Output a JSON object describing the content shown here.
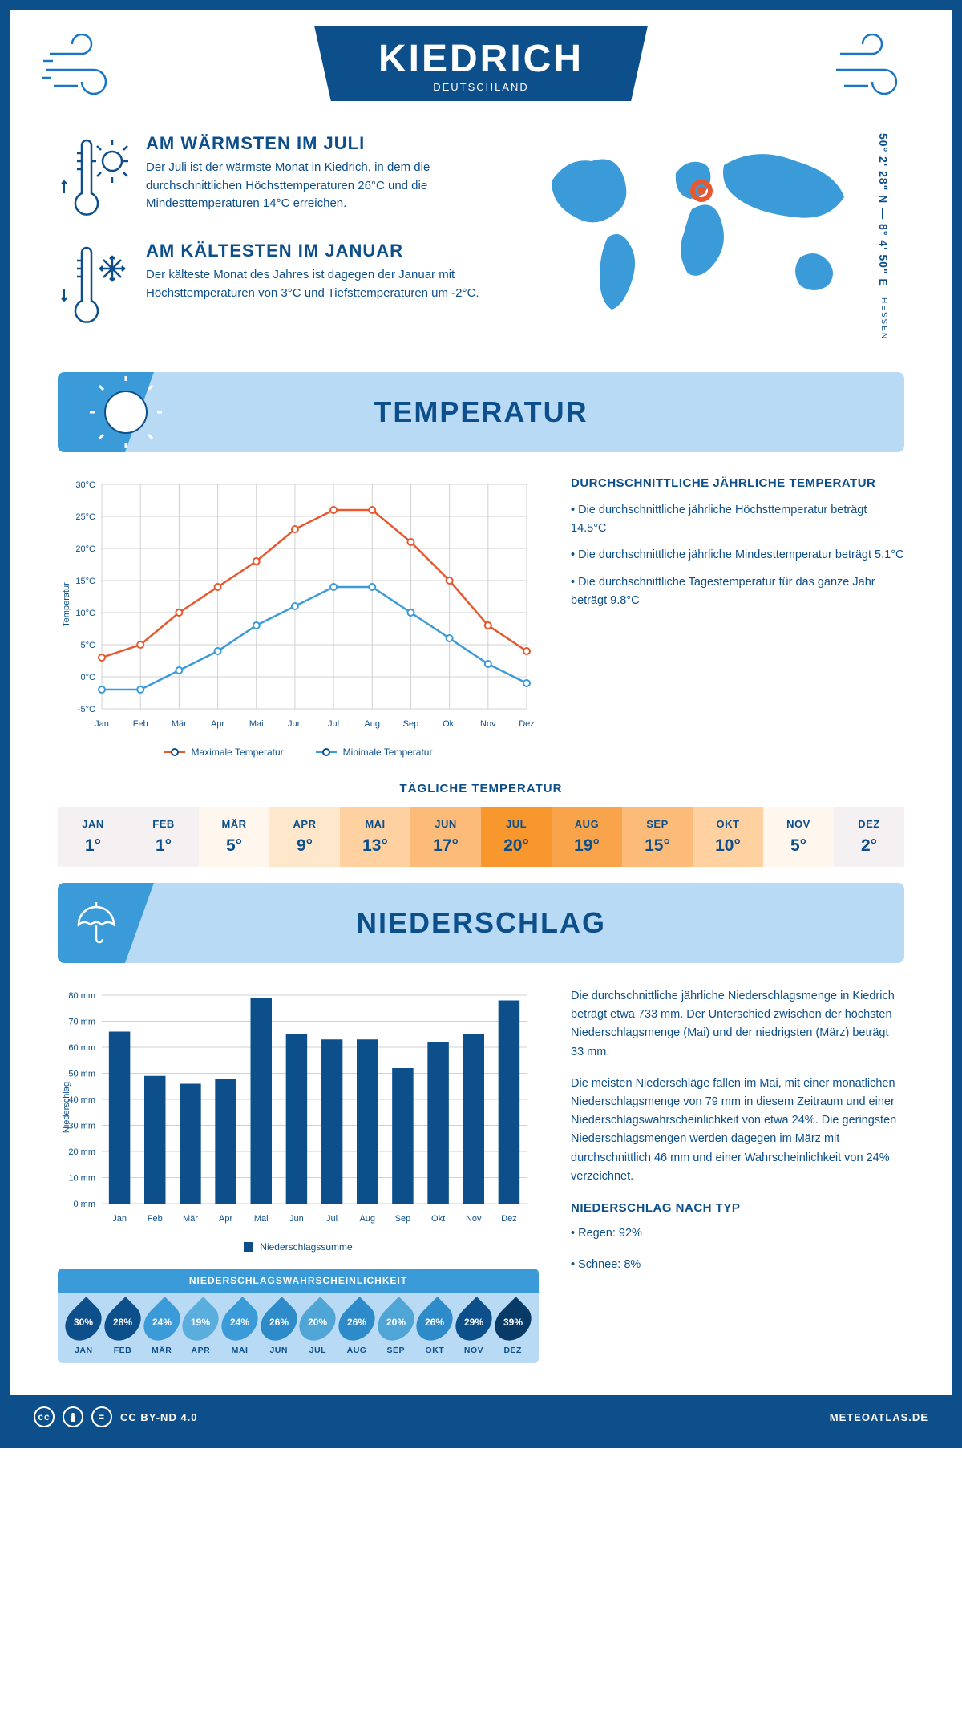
{
  "header": {
    "city": "KIEDRICH",
    "country": "DEUTSCHLAND"
  },
  "coords": {
    "text": "50° 2' 28\" N — 8° 4' 50\" E",
    "region": "HESSEN"
  },
  "intro": {
    "hot": {
      "title": "AM WÄRMSTEN IM JULI",
      "text": "Der Juli ist der wärmste Monat in Kiedrich, in dem die durchschnittlichen Höchsttemperaturen 26°C und die Mindesttemperaturen 14°C erreichen."
    },
    "cold": {
      "title": "AM KÄLTESTEN IM JANUAR",
      "text": "Der kälteste Monat des Jahres ist dagegen der Januar mit Höchsttemperaturen von 3°C und Tiefsttemperaturen um -2°C."
    }
  },
  "sections": {
    "temp": "TEMPERATUR",
    "nied": "NIEDERSCHLAG"
  },
  "tempChart": {
    "months": [
      "Jan",
      "Feb",
      "Mär",
      "Apr",
      "Mai",
      "Jun",
      "Jul",
      "Aug",
      "Sep",
      "Okt",
      "Nov",
      "Dez"
    ],
    "max": [
      3,
      5,
      10,
      14,
      18,
      23,
      26,
      26,
      21,
      15,
      8,
      4
    ],
    "min": [
      -2,
      -2,
      1,
      4,
      8,
      11,
      14,
      14,
      10,
      6,
      2,
      -1
    ],
    "ymin": -5,
    "ymax": 30,
    "ystep": 5,
    "max_color": "#e8582e",
    "min_color": "#3b9bd8",
    "grid_color": "#d0d0d0",
    "ylabel": "Temperatur",
    "legend_max": "Maximale Temperatur",
    "legend_min": "Minimale Temperatur"
  },
  "tempSide": {
    "title": "DURCHSCHNITTLICHE JÄHRLICHE TEMPERATUR",
    "b1": "• Die durchschnittliche jährliche Höchsttemperatur beträgt 14.5°C",
    "b2": "• Die durchschnittliche jährliche Mindesttemperatur beträgt 5.1°C",
    "b3": "• Die durchschnittliche Tagestemperatur für das ganze Jahr beträgt 9.8°C"
  },
  "daily": {
    "title": "TÄGLICHE TEMPERATUR",
    "months": [
      "JAN",
      "FEB",
      "MÄR",
      "APR",
      "MAI",
      "JUN",
      "JUL",
      "AUG",
      "SEP",
      "OKT",
      "NOV",
      "DEZ"
    ],
    "values": [
      "1°",
      "1°",
      "5°",
      "9°",
      "13°",
      "17°",
      "20°",
      "19°",
      "15°",
      "10°",
      "5°",
      "2°"
    ],
    "colors": [
      "#f5f0f2",
      "#f5f0f2",
      "#fff7ed",
      "#ffe7cc",
      "#ffd1a0",
      "#fdbb7a",
      "#f7972e",
      "#f9a44a",
      "#fdbb7a",
      "#ffd1a0",
      "#fff7ed",
      "#f5f0f2"
    ]
  },
  "niedChart": {
    "months": [
      "Jan",
      "Feb",
      "Mär",
      "Apr",
      "Mai",
      "Jun",
      "Jul",
      "Aug",
      "Sep",
      "Okt",
      "Nov",
      "Dez"
    ],
    "values": [
      66,
      49,
      46,
      48,
      79,
      65,
      63,
      63,
      52,
      62,
      65,
      78
    ],
    "ymax": 80,
    "ystep": 10,
    "bar_color": "#0d4f8b",
    "ylabel": "Niederschlag",
    "legend": "Niederschlagssumme"
  },
  "niedSide": {
    "p1": "Die durchschnittliche jährliche Niederschlagsmenge in Kiedrich beträgt etwa 733 mm. Der Unterschied zwischen der höchsten Niederschlagsmenge (Mai) und der niedrigsten (März) beträgt 33 mm.",
    "p2": "Die meisten Niederschläge fallen im Mai, mit einer monatlichen Niederschlagsmenge von 79 mm in diesem Zeitraum und einer Niederschlagswahrscheinlichkeit von etwa 24%. Die geringsten Niederschlagsmengen werden dagegen im März mit durchschnittlich 46 mm und einer Wahrscheinlichkeit von 24% verzeichnet.",
    "type_title": "NIEDERSCHLAG NACH TYP",
    "rain": "• Regen: 92%",
    "snow": "• Schnee: 8%"
  },
  "prob": {
    "title": "NIEDERSCHLAGSWAHRSCHEINLICHKEIT",
    "months": [
      "JAN",
      "FEB",
      "MÄR",
      "APR",
      "MAI",
      "JUN",
      "JUL",
      "AUG",
      "SEP",
      "OKT",
      "NOV",
      "DEZ"
    ],
    "values": [
      "30%",
      "28%",
      "24%",
      "19%",
      "24%",
      "26%",
      "20%",
      "26%",
      "20%",
      "26%",
      "29%",
      "39%"
    ],
    "colors": [
      "#0d4f8b",
      "#0d4f8b",
      "#3b9bd8",
      "#5aaede",
      "#3b9bd8",
      "#2d8bc9",
      "#4fa5d6",
      "#2d8bc9",
      "#4fa5d6",
      "#2d8bc9",
      "#0d4f8b",
      "#083a68"
    ]
  },
  "footer": {
    "license": "CC BY-ND 4.0",
    "site": "METEOATLAS.DE"
  }
}
